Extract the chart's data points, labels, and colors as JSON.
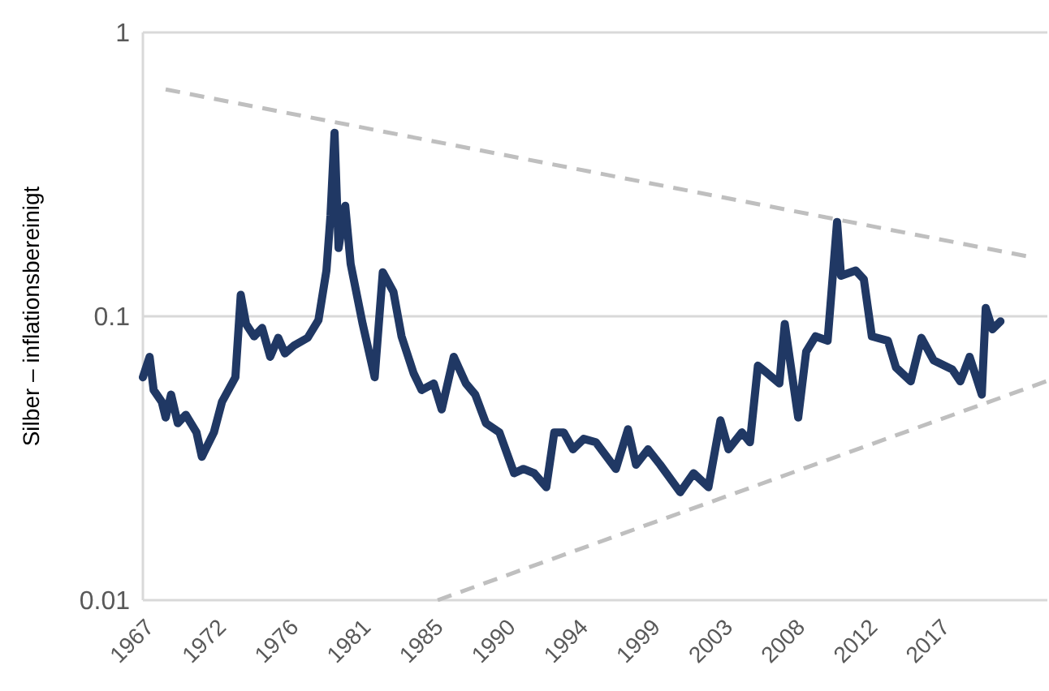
{
  "chart_data": {
    "type": "line",
    "ylabel": "Silber – inflationsbereinigt",
    "log": "y",
    "grid": "y",
    "marker": "none",
    "xlim": [
      "1967-12",
      "2024-03"
    ],
    "xticks": [
      {
        "value": "1967-12",
        "label": "1967"
      },
      {
        "value": "1972-06",
        "label": "1972"
      },
      {
        "value": "1976-12",
        "label": "1976"
      },
      {
        "value": "1981-06",
        "label": "1981"
      },
      {
        "value": "1985-12",
        "label": "1985"
      },
      {
        "value": "1990-06",
        "label": "1990"
      },
      {
        "value": "1994-12",
        "label": "1994"
      },
      {
        "value": "1999-06",
        "label": "1999"
      },
      {
        "value": "2003-12",
        "label": "2003"
      },
      {
        "value": "2008-06",
        "label": "2008"
      },
      {
        "value": "2012-12",
        "label": "2012"
      },
      {
        "value": "2017-06",
        "label": "2017"
      }
    ],
    "ylim": [
      0.01,
      1
    ],
    "yticks": [
      0.01,
      0.1,
      1
    ],
    "series": [
      {
        "color": "#203864",
        "line_style": "solid",
        "x": [
          "1967-12",
          "1968-05",
          "1968-08",
          "1969-02",
          "1969-05",
          "1969-09",
          "1970-02",
          "1970-08",
          "1971-04",
          "1971-08",
          "1972-05",
          "1972-11",
          "1973-09",
          "1974-01",
          "1974-05",
          "1974-11",
          "1975-05",
          "1975-11",
          "1976-05",
          "1976-10",
          "1977-05",
          "1978-03",
          "1978-11",
          "1979-05",
          "1979-08",
          "1979-11",
          "1980-02",
          "1980-07",
          "1980-11",
          "1981-08",
          "1982-05",
          "1982-11",
          "1983-07",
          "1984-01",
          "1984-10",
          "1985-04",
          "1986-01",
          "1986-07",
          "1987-04",
          "1988-01",
          "1988-08",
          "1989-04",
          "1990-02",
          "1991-01",
          "1991-08",
          "1992-04",
          "1993-01",
          "1993-07",
          "1994-02",
          "1994-09",
          "1995-05",
          "1996-02",
          "1997-05",
          "1998-02",
          "1998-08",
          "1999-05",
          "2000-02",
          "2001-05",
          "2002-03",
          "2003-02",
          "2003-11",
          "2004-05",
          "2005-03",
          "2005-09",
          "2006-03",
          "2006-10",
          "2007-07",
          "2007-11",
          "2008-09",
          "2009-03",
          "2009-10",
          "2010-07",
          "2011-02",
          "2011-05",
          "2012-04",
          "2012-10",
          "2013-04",
          "2014-04",
          "2014-10",
          "2015-09",
          "2016-05",
          "2017-02",
          "2018-04",
          "2018-10",
          "2019-05",
          "2020-02",
          "2020-05",
          "2020-10",
          "2021-04"
        ],
        "values": [
          0.061,
          0.072,
          0.055,
          0.05,
          0.044,
          0.053,
          0.042,
          0.045,
          0.039,
          0.032,
          0.039,
          0.05,
          0.061,
          0.119,
          0.094,
          0.085,
          0.091,
          0.072,
          0.084,
          0.074,
          0.079,
          0.084,
          0.097,
          0.145,
          0.226,
          0.443,
          0.174,
          0.245,
          0.153,
          0.094,
          0.061,
          0.143,
          0.122,
          0.085,
          0.063,
          0.055,
          0.058,
          0.047,
          0.072,
          0.058,
          0.053,
          0.042,
          0.039,
          0.028,
          0.029,
          0.028,
          0.025,
          0.039,
          0.039,
          0.034,
          0.037,
          0.036,
          0.029,
          0.04,
          0.03,
          0.034,
          0.03,
          0.024,
          0.028,
          0.025,
          0.043,
          0.034,
          0.039,
          0.036,
          0.067,
          0.063,
          0.058,
          0.094,
          0.044,
          0.075,
          0.085,
          0.082,
          0.215,
          0.139,
          0.145,
          0.135,
          0.085,
          0.082,
          0.066,
          0.059,
          0.084,
          0.07,
          0.065,
          0.059,
          0.072,
          0.053,
          0.107,
          0.09,
          0.096
        ]
      },
      {
        "color": "#bfbfbf",
        "line_style": "dashed",
        "x": [
          "1969-05",
          "2022-11"
        ],
        "values": [
          0.63,
          0.163
        ]
      },
      {
        "color": "#bfbfbf",
        "line_style": "dashed",
        "x": [
          "1986-04",
          "2024-02"
        ],
        "values": [
          0.01,
          0.059
        ]
      }
    ]
  }
}
